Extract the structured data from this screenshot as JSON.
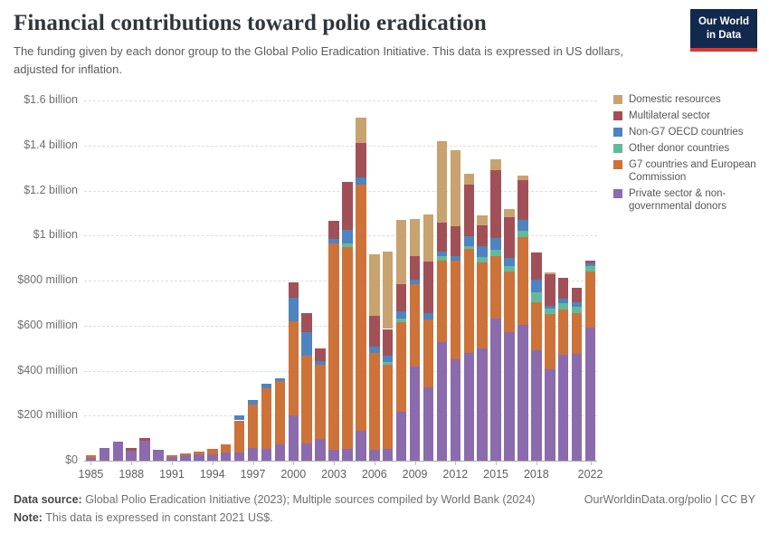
{
  "header": {
    "title": "Financial contributions toward polio eradication",
    "subtitle": "The funding given by each donor group to the Global Polio Eradication Initiative. This data is expressed in US dollars, adjusted for inflation."
  },
  "logo": {
    "line1": "Our World",
    "line2": "in Data",
    "bg_color": "#12294E",
    "accent_color": "#E0352B"
  },
  "chart_data": {
    "type": "bar",
    "stacked": true,
    "title": "Financial contributions toward polio eradication",
    "unit": "US$ millions (constant 2021 US$)",
    "grid": "horizontal dashed",
    "legend_position": "right",
    "ylim": [
      0,
      1600
    ],
    "y_ticks": [
      {
        "value": 0,
        "label": "$0"
      },
      {
        "value": 200,
        "label": "$200 million"
      },
      {
        "value": 400,
        "label": "$400 million"
      },
      {
        "value": 600,
        "label": "$600 million"
      },
      {
        "value": 800,
        "label": "$800 million"
      },
      {
        "value": 1000,
        "label": "$1 billion"
      },
      {
        "value": 1200,
        "label": "$1.2 billion"
      },
      {
        "value": 1400,
        "label": "$1.4 billion"
      },
      {
        "value": 1600,
        "label": "$1.6 billion"
      }
    ],
    "x": [
      1985,
      1986,
      1987,
      1988,
      1989,
      1990,
      1991,
      1992,
      1993,
      1994,
      1995,
      1996,
      1997,
      1998,
      1999,
      2000,
      2001,
      2002,
      2003,
      2004,
      2005,
      2006,
      2007,
      2008,
      2009,
      2010,
      2011,
      2012,
      2013,
      2014,
      2015,
      2016,
      2017,
      2018,
      2019,
      2020,
      2021,
      2022
    ],
    "x_tick_labels": [
      "1985",
      "1988",
      "1991",
      "1994",
      "1997",
      "2000",
      "2003",
      "2006",
      "2009",
      "2012",
      "2015",
      "2018",
      "2022"
    ],
    "series": [
      {
        "name": "Domestic resources",
        "color": "#C8A370",
        "values": [
          0,
          0,
          0,
          0,
          0,
          0,
          0,
          0,
          0,
          0,
          0,
          0,
          0,
          0,
          0,
          0,
          0,
          0,
          0,
          0,
          112,
          270,
          345,
          286,
          167,
          210,
          364,
          338,
          48,
          45,
          48,
          36,
          20,
          0,
          8,
          0,
          0,
          0
        ]
      },
      {
        "name": "Multilateral sector",
        "color": "#A25058",
        "values": [
          0,
          0,
          0,
          12,
          14,
          0,
          0,
          0,
          0,
          0,
          0,
          0,
          0,
          0,
          0,
          68,
          85,
          55,
          80,
          211,
          155,
          140,
          120,
          119,
          104,
          226,
          128,
          133,
          230,
          92,
          300,
          180,
          177,
          118,
          140,
          93,
          65,
          12
        ]
      },
      {
        "name": "Non-G7 OECD countries",
        "color": "#4E84BF",
        "values": [
          0,
          0,
          0,
          0,
          0,
          0,
          0,
          0,
          0,
          0,
          0,
          24,
          20,
          22,
          10,
          105,
          105,
          18,
          22,
          64,
          32,
          27,
          27,
          32,
          20,
          28,
          20,
          20,
          45,
          50,
          52,
          36,
          48,
          56,
          12,
          20,
          20,
          12
        ]
      },
      {
        "name": "Other donor countries",
        "color": "#62BA9D",
        "values": [
          0,
          0,
          0,
          0,
          0,
          0,
          0,
          0,
          0,
          0,
          0,
          0,
          0,
          0,
          0,
          0,
          0,
          0,
          0,
          16,
          0,
          0,
          12,
          16,
          0,
          0,
          20,
          0,
          12,
          24,
          28,
          24,
          28,
          44,
          24,
          28,
          28,
          24
        ]
      },
      {
        "name": "G7 countries and European Commission",
        "color": "#CD7238",
        "values": [
          10,
          0,
          0,
          0,
          0,
          0,
          8,
          10,
          13,
          22,
          35,
          141,
          195,
          268,
          282,
          420,
          390,
          330,
          915,
          895,
          1095,
          430,
          374,
          398,
          366,
          303,
          363,
          438,
          460,
          380,
          280,
          271,
          390,
          215,
          245,
          201,
          181,
          250
        ]
      },
      {
        "name": "Private sector & non-governmental donors",
        "color": "#8B6BAE",
        "values": [
          14,
          55,
          83,
          45,
          88,
          50,
          18,
          23,
          27,
          30,
          38,
          38,
          56,
          52,
          72,
          200,
          75,
          95,
          48,
          52,
          131,
          48,
          52,
          219,
          418,
          326,
          525,
          450,
          480,
          500,
          630,
          570,
          605,
          490,
          406,
          470,
          474,
          590
        ]
      }
    ],
    "stack_order_bottom_to_top": [
      "Private sector & non-governmental donors",
      "G7 countries and European Commission",
      "Other donor countries",
      "Non-G7 OECD countries",
      "Multilateral sector",
      "Domestic resources"
    ]
  },
  "footer": {
    "source_label": "Data source:",
    "source_text": "Global Polio Eradication Initiative (2023); Multiple sources compiled by World Bank (2024)",
    "link": "OurWorldinData.org/polio | CC BY",
    "note_label": "Note:",
    "note_text": "This data is expressed in constant 2021 US$."
  }
}
